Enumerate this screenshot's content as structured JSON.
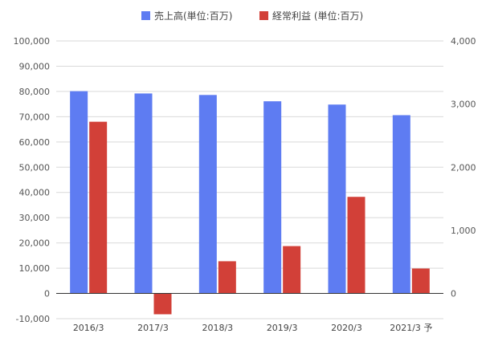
{
  "chart_data": {
    "type": "bar",
    "categories": [
      "2016/3",
      "2017/3",
      "2018/3",
      "2019/3",
      "2020/3",
      "2021/3 予"
    ],
    "series": [
      {
        "name": "売上高(単位:百万)",
        "axis": "left",
        "color": "#5e7cf2",
        "values": [
          80100,
          79200,
          78600,
          76100,
          74800,
          70600
        ]
      },
      {
        "name": "経常利益 (単位:百万)",
        "axis": "right",
        "color": "#d24038",
        "values": [
          2720,
          -330,
          510,
          750,
          1530,
          395
        ]
      }
    ],
    "y_left": {
      "range": [
        -10000,
        100000
      ],
      "ticks": [
        "-10,000",
        "0",
        "10,000",
        "20,000",
        "30,000",
        "40,000",
        "50,000",
        "60,000",
        "70,000",
        "80,000",
        "90,000",
        "100,000"
      ]
    },
    "y_right": {
      "range": [
        -400,
        4000
      ],
      "ticks": [
        "0",
        "1,000",
        "2,000",
        "3,000",
        "4,000"
      ]
    },
    "grid": true,
    "legend_position": "top-center"
  }
}
